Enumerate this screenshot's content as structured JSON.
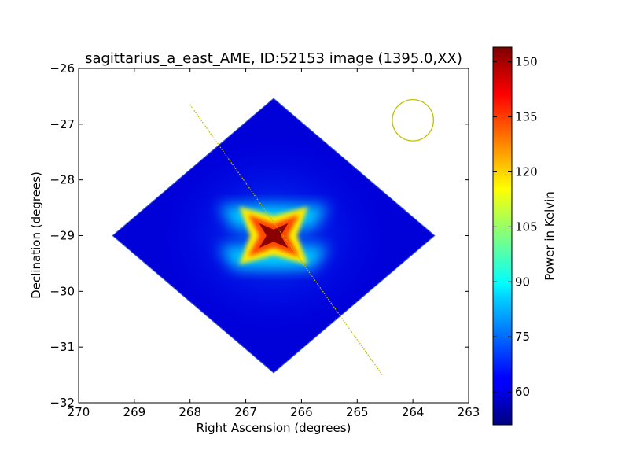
{
  "chart_data": {
    "type": "heatmap",
    "title": "sagittarius_a_east_AME, ID:52153 image (1395.0,XX)",
    "xlabel": "Right Ascension (degrees)",
    "ylabel": "Declination (degrees)",
    "xlim": [
      270,
      263
    ],
    "ylim": [
      -32,
      -26
    ],
    "xticks": [
      270,
      269,
      268,
      267,
      266,
      265,
      264,
      263
    ],
    "xtick_labels": [
      "270",
      "269",
      "268",
      "267",
      "266",
      "265",
      "264",
      "263"
    ],
    "yticks": [
      -26,
      -27,
      -28,
      -29,
      -30,
      -31,
      -32
    ],
    "ytick_labels": [
      "−26",
      "−27",
      "−28",
      "−29",
      "−30",
      "−31",
      "−32"
    ],
    "colorbar": {
      "label": "Power in Kelvin",
      "range": [
        51,
        154
      ],
      "ticks": [
        60,
        75,
        90,
        105,
        120,
        135,
        150
      ],
      "tick_labels": [
        "60",
        "75",
        "90",
        "105",
        "120",
        "135",
        "150"
      ]
    },
    "map_footprint": {
      "shape": "diamond",
      "vertices": [
        [
          266.5,
          -26.53
        ],
        [
          263.6,
          -29.0
        ],
        [
          266.5,
          -31.47
        ],
        [
          269.4,
          -29.0
        ]
      ],
      "background_level": 53
    },
    "peak": {
      "ra": 266.5,
      "dec": -29.0,
      "value": 154
    },
    "scan_line": {
      "start": [
        268.0,
        -26.65
      ],
      "end": [
        264.55,
        -31.5
      ],
      "color": "#bfbf00"
    },
    "beam_circle": {
      "ra": 264.0,
      "dec": -26.93,
      "radius_deg": 0.37,
      "color": "#bfbf00"
    }
  }
}
